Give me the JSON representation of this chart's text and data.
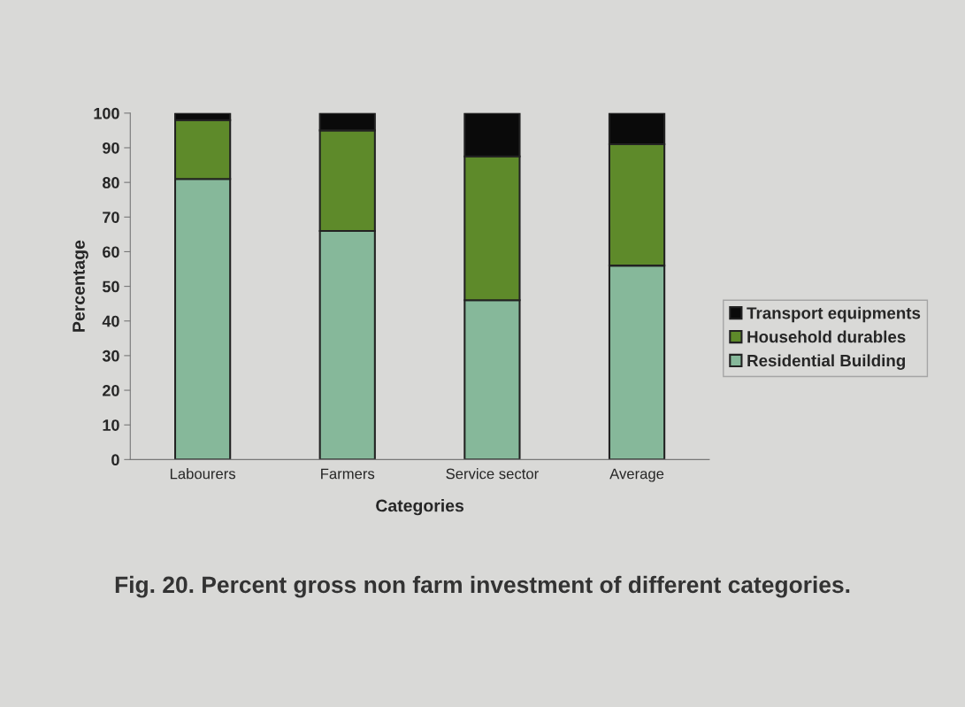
{
  "chart_data": {
    "type": "bar",
    "title": "Fig. 20. Percent gross non farm investment of different categories.",
    "xlabel": "Categories",
    "ylabel": "Percentage",
    "categories": [
      "Labourers",
      "Farmers",
      "Service sector",
      "Average"
    ],
    "stacked": true,
    "series": [
      {
        "name": "Residential Building",
        "color": "#86b89a",
        "values": [
          81,
          66,
          46,
          56
        ]
      },
      {
        "name": "Household durables",
        "color": "#5e8a2a",
        "values": [
          17,
          29,
          41.5,
          35
        ]
      },
      {
        "name": "Transport equipments",
        "color": "#0a0a0a",
        "values": [
          2,
          5,
          12.5,
          9
        ]
      }
    ],
    "ylim": [
      0,
      100
    ],
    "yticks": [
      0,
      10,
      20,
      30,
      40,
      50,
      60,
      70,
      80,
      90,
      100
    ],
    "grid": false,
    "legend": "right"
  }
}
